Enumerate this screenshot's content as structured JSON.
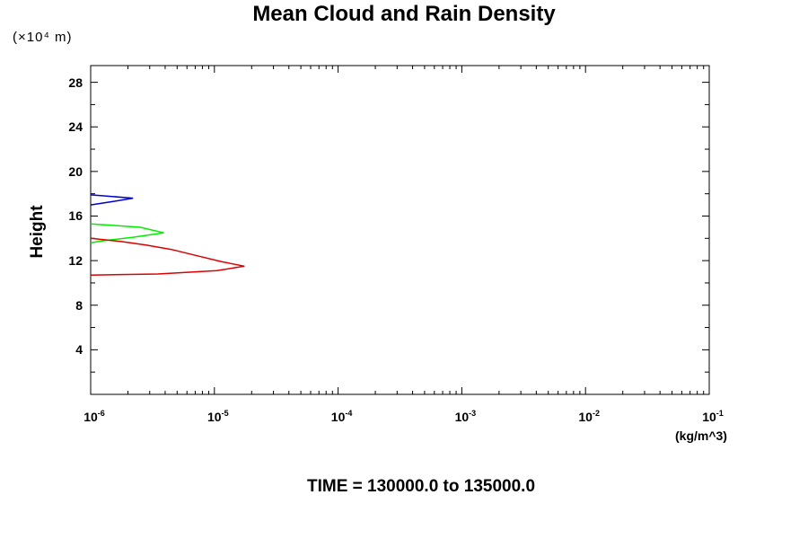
{
  "chart_data": {
    "type": "line",
    "title": "Mean Cloud and Rain Density",
    "scale_note": "(×10⁴ m)",
    "ylabel": "Height",
    "xlabel_unit": "(kg/m^3)",
    "footer": "TIME = 130000.0 to 135000.0",
    "x_scale": "log",
    "xlim": [
      1e-06,
      0.1
    ],
    "ylim": [
      0,
      29.5
    ],
    "x_ticks": [
      {
        "base": "10",
        "exp": "-6",
        "value": 1e-06
      },
      {
        "base": "10",
        "exp": "-5",
        "value": 1e-05
      },
      {
        "base": "10",
        "exp": "-4",
        "value": 0.0001
      },
      {
        "base": "10",
        "exp": "-3",
        "value": 0.001
      },
      {
        "base": "10",
        "exp": "-2",
        "value": 0.01
      },
      {
        "base": "10",
        "exp": "-1",
        "value": 0.1
      }
    ],
    "y_ticks": [
      "4",
      "8",
      "12",
      "16",
      "20",
      "24",
      "28"
    ],
    "grid": false,
    "series": [
      {
        "color": "#0000cc",
        "points": [
          {
            "x": 1e-06,
            "y": 17.9
          },
          {
            "x": 2.2e-06,
            "y": 17.6
          },
          {
            "x": 1.5e-06,
            "y": 17.3
          },
          {
            "x": 1e-06,
            "y": 17.0
          }
        ]
      },
      {
        "color": "#00ee00",
        "points": [
          {
            "x": 1e-06,
            "y": 15.3
          },
          {
            "x": 2.5e-06,
            "y": 15.0
          },
          {
            "x": 3.9e-06,
            "y": 14.5
          },
          {
            "x": 2.2e-06,
            "y": 14.1
          },
          {
            "x": 1.3e-06,
            "y": 13.8
          },
          {
            "x": 1e-06,
            "y": 13.6
          }
        ]
      },
      {
        "color": "#dd0000",
        "points": [
          {
            "x": 1e-06,
            "y": 14.0
          },
          {
            "x": 1.8e-06,
            "y": 13.7
          },
          {
            "x": 2.8e-06,
            "y": 13.4
          },
          {
            "x": 4.5e-06,
            "y": 13.0
          },
          {
            "x": 7.5e-06,
            "y": 12.4
          },
          {
            "x": 1.15e-05,
            "y": 11.9
          },
          {
            "x": 1.75e-05,
            "y": 11.5
          },
          {
            "x": 1.05e-05,
            "y": 11.1
          },
          {
            "x": 3.5e-06,
            "y": 10.8
          },
          {
            "x": 1e-06,
            "y": 10.7
          }
        ]
      }
    ]
  }
}
